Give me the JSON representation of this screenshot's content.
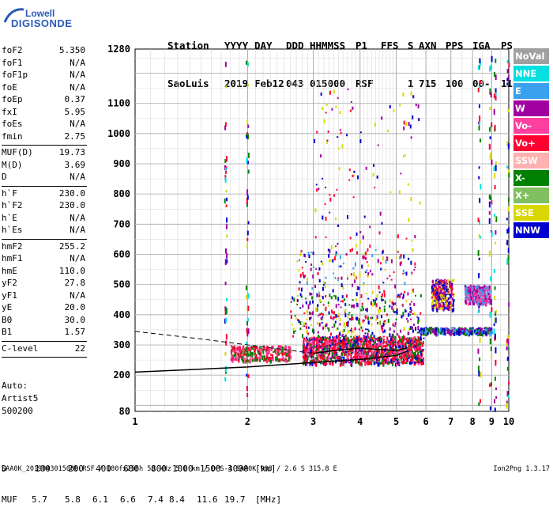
{
  "logo": {
    "line1": "Lowell",
    "line2": "DIGISONDE"
  },
  "header": {
    "labels": [
      "Station",
      "YYYY",
      "DAY",
      "DDD",
      "HHMMSS",
      "P1",
      "FFS",
      "S",
      "AXN",
      "PPS",
      "IGA",
      "PS"
    ],
    "values": [
      "SaoLuis",
      "2019",
      "Feb12",
      "043",
      "015000",
      "RSF",
      "",
      "1",
      "715",
      "100",
      "00-",
      "11"
    ]
  },
  "params": {
    "group1": [
      {
        "k": "foF2",
        "v": "5.350"
      },
      {
        "k": "foF1",
        "v": "N/A"
      },
      {
        "k": "foF1p",
        "v": "N/A"
      },
      {
        "k": "foE",
        "v": "N/A"
      },
      {
        "k": "foEp",
        "v": "0.37"
      },
      {
        "k": "fxI",
        "v": "5.95"
      },
      {
        "k": "foEs",
        "v": "N/A"
      },
      {
        "k": "fmin",
        "v": "2.75"
      }
    ],
    "group2": [
      {
        "k": "MUF(D)",
        "v": "19.73"
      },
      {
        "k": "M(D)",
        "v": "3.69"
      },
      {
        "k": "D",
        "v": "N/A"
      }
    ],
    "group3": [
      {
        "k": "h`F",
        "v": "230.0"
      },
      {
        "k": "h`F2",
        "v": "230.0"
      },
      {
        "k": "h`E",
        "v": "N/A"
      },
      {
        "k": "h`Es",
        "v": "N/A"
      }
    ],
    "group4": [
      {
        "k": "hmF2",
        "v": "255.2"
      },
      {
        "k": "hmF1",
        "v": "N/A"
      },
      {
        "k": "hmE",
        "v": "110.0"
      },
      {
        "k": "yF2",
        "v": "27.8"
      },
      {
        "k": "yF1",
        "v": "N/A"
      },
      {
        "k": "yE",
        "v": "20.0"
      },
      {
        "k": "B0",
        "v": "30.0"
      },
      {
        "k": "B1",
        "v": "1.57"
      }
    ],
    "group5": [
      {
        "k": "C-level",
        "v": "22"
      }
    ]
  },
  "autoscaling": {
    "line1": "Auto:",
    "line2": "Artist5",
    "line3": "500200"
  },
  "legend": [
    {
      "label": "NoVal",
      "color": "#a0a0a0"
    },
    {
      "label": "NNE",
      "color": "#00e0e0"
    },
    {
      "label": "E",
      "color": "#3aa0f0"
    },
    {
      "label": "W",
      "color": "#a000a0"
    },
    {
      "label": "Vo-",
      "color": "#ff40a0"
    },
    {
      "label": "Vo+",
      "color": "#ff0030"
    },
    {
      "label": "SSW",
      "color": "#ffb0b0"
    },
    {
      "label": "X-",
      "color": "#008000"
    },
    {
      "label": "X+",
      "color": "#80c060"
    },
    {
      "label": "SSE",
      "color": "#d8d800"
    },
    {
      "label": "NNW",
      "color": "#0000d0"
    }
  ],
  "dmuf": {
    "d_label": "D",
    "d_values": [
      "100",
      "200",
      "400",
      "600",
      "800",
      "1000",
      "1500",
      "3000"
    ],
    "d_unit": "[km]",
    "muf_label": "MUF",
    "muf_values": [
      "5.7",
      "5.8",
      "6.1",
      "6.6",
      "7.4",
      "8.4",
      "11.6",
      "19.7"
    ],
    "muf_unit": "[MHz]"
  },
  "footer": {
    "left": "SAA0K_2019043015000.RSF / 180fx256h 50 kHz 5.0 km / DPS-4 SAA0K 903 / 2.6 S 315.8 E",
    "right": "Ion2Png 1.3.17"
  },
  "chart_data": {
    "type": "scatter",
    "xlim": [
      1,
      10
    ],
    "ylim": [
      80,
      1280
    ],
    "x_ticks": [
      "1",
      "2",
      "3",
      "4",
      "5",
      "6",
      "7",
      "8",
      "9",
      "10"
    ],
    "y_ticks": [
      "80",
      "200",
      "300",
      "400",
      "500",
      "600",
      "700",
      "800",
      "900",
      "1000",
      "1100",
      "1280"
    ],
    "x_scale": "log",
    "grid": true,
    "profile_curve": [
      [
        1.0,
        210
      ],
      [
        2.0,
        227
      ],
      [
        3.0,
        242
      ],
      [
        4.0,
        252
      ],
      [
        5.0,
        265
      ],
      [
        5.35,
        280
      ]
    ],
    "trace_curve": [
      [
        3.0,
        272
      ],
      [
        3.5,
        283
      ],
      [
        4.0,
        290
      ],
      [
        4.5,
        285
      ],
      [
        5.0,
        282
      ],
      [
        5.35,
        290
      ]
    ],
    "dashed_curve": [
      [
        1.0,
        345
      ],
      [
        1.5,
        320
      ],
      [
        2.0,
        300
      ],
      [
        2.5,
        285
      ],
      [
        3.0,
        272
      ]
    ],
    "echo_clusters": [
      {
        "x_range": [
          2.8,
          5.9
        ],
        "h_range": [
          240,
          330
        ],
        "weight": "dense",
        "colors": [
          "#ff0030",
          "#ff0030",
          "#ff40a0",
          "#008000",
          "#0000d0"
        ]
      },
      {
        "x_range": [
          2.6,
          5.8
        ],
        "h_range": [
          330,
          470
        ],
        "weight": "medium",
        "colors": [
          "#ff0030",
          "#a000a0",
          "#d8d800",
          "#0000d0",
          "#008000"
        ]
      },
      {
        "x_range": [
          2.7,
          5.6
        ],
        "h_range": [
          470,
          620
        ],
        "weight": "sparse",
        "colors": [
          "#a000a0",
          "#ff0030",
          "#d8d800",
          "#3aa0f0",
          "#0000d0"
        ]
      },
      {
        "x_range": [
          1.8,
          2.6
        ],
        "h_range": [
          250,
          300
        ],
        "weight": "medium",
        "colors": [
          "#ff0030",
          "#ff40a0",
          "#008000"
        ]
      },
      {
        "x_range": [
          6.2,
          7.1
        ],
        "h_range": [
          420,
          520
        ],
        "weight": "medium",
        "colors": [
          "#a000a0",
          "#ff0030",
          "#0000d0",
          "#d8d800"
        ]
      },
      {
        "x_range": [
          7.6,
          8.9
        ],
        "h_range": [
          440,
          500
        ],
        "weight": "medium",
        "colors": [
          "#a000a0",
          "#ff40a0",
          "#3aa0f0"
        ]
      },
      {
        "x_range": [
          5.8,
          9.0
        ],
        "h_range": [
          340,
          360
        ],
        "weight": "medium",
        "colors": [
          "#008000",
          "#3aa0f0",
          "#0000d0",
          "#a000a0"
        ]
      },
      {
        "x_range": [
          3.0,
          5.8
        ],
        "h_range": [
          620,
          1150
        ],
        "weight": "very-sparse",
        "colors": [
          "#a000a0",
          "#0000d0",
          "#ff0030",
          "#d8d800"
        ]
      }
    ],
    "column_streaks": [
      1.75,
      2.0,
      8.35,
      8.95,
      9.2,
      9.95
    ]
  }
}
